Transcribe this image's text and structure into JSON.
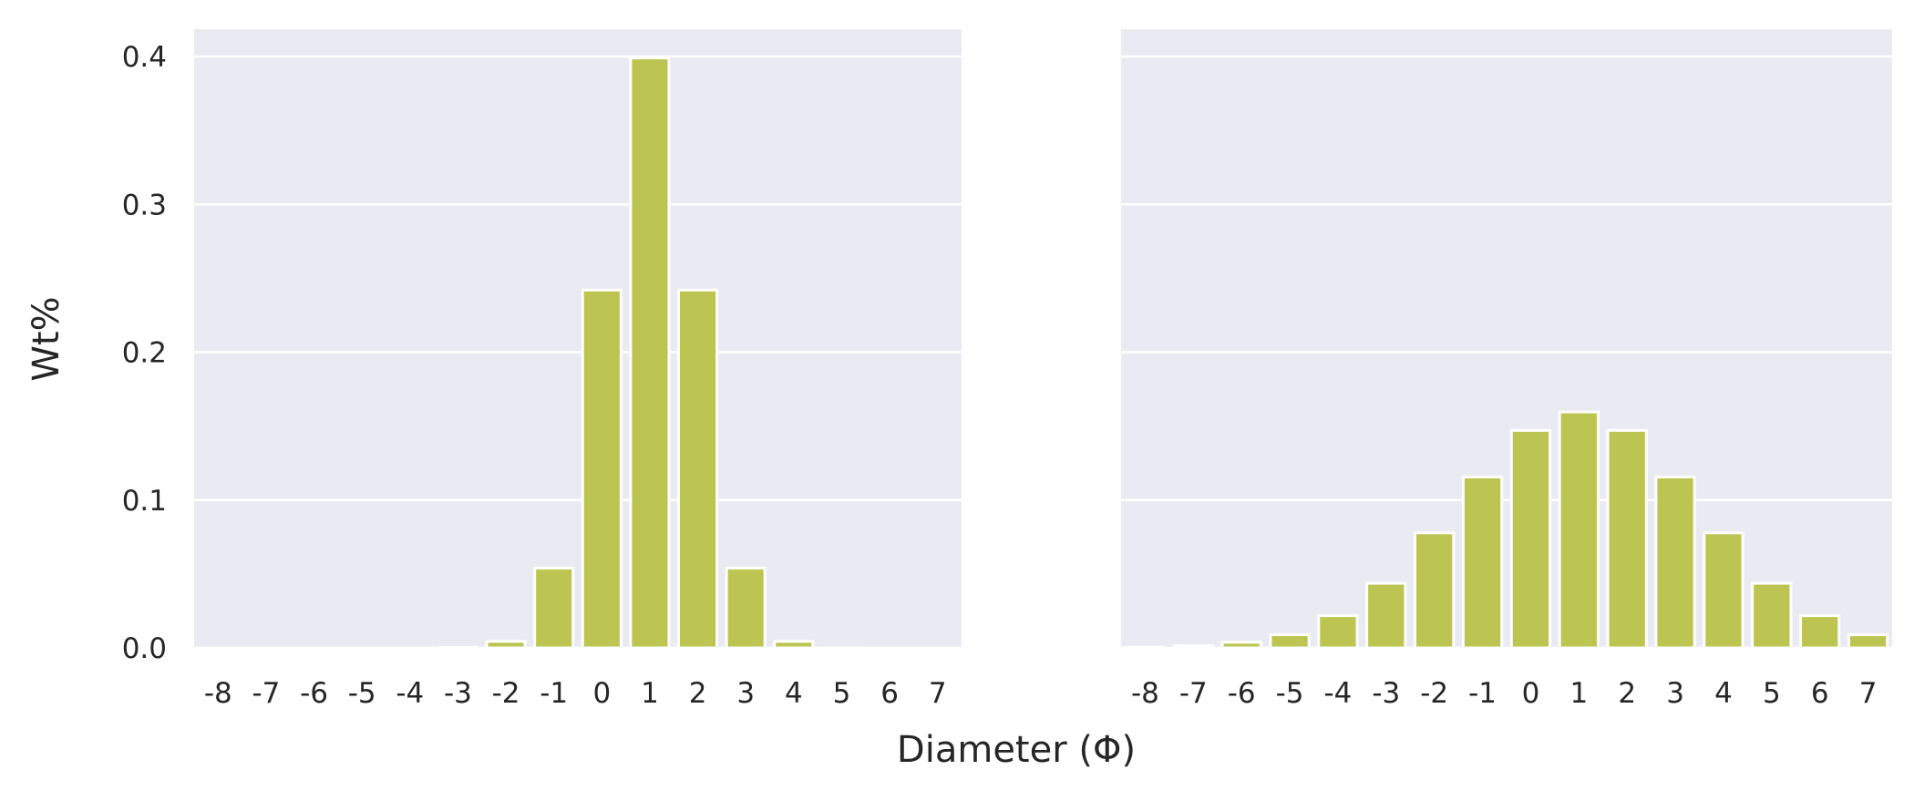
{
  "chart_data": [
    {
      "type": "bar",
      "ylabel": "Wt%",
      "xlabel": "Diameter (Φ)",
      "categories": [
        "-8",
        "-7",
        "-6",
        "-5",
        "-4",
        "-3",
        "-2",
        "-1",
        "0",
        "1",
        "2",
        "3",
        "4",
        "5",
        "6",
        "7"
      ],
      "values": [
        0.0,
        0.0,
        0.0,
        0.0,
        0.0,
        0.0003,
        0.0044,
        0.054,
        0.242,
        0.399,
        0.242,
        0.054,
        0.0044,
        0.0001,
        0.0,
        0.0
      ],
      "ylim": [
        0,
        0.42
      ],
      "yticks": [
        "0.0",
        "0.1",
        "0.2",
        "0.3",
        "0.4"
      ],
      "grid": true,
      "colors": {
        "bar": "#bcc552",
        "background": "#eaeaf2",
        "edge": "#ffffff"
      }
    },
    {
      "type": "bar",
      "ylabel": "",
      "xlabel": "Diameter (Φ)",
      "categories": [
        "-8",
        "-7",
        "-6",
        "-5",
        "-4",
        "-3",
        "-2",
        "-1",
        "0",
        "1",
        "2",
        "3",
        "4",
        "5",
        "6",
        "7"
      ],
      "values": [
        0.0004,
        0.0015,
        0.0038,
        0.0089,
        0.0218,
        0.0437,
        0.0778,
        0.1156,
        0.1471,
        0.1596,
        0.1471,
        0.1156,
        0.0778,
        0.0437,
        0.0218,
        0.0089
      ],
      "ylim": [
        0,
        0.42
      ],
      "yticks": [
        "0.0",
        "0.1",
        "0.2",
        "0.3",
        "0.4"
      ],
      "grid": true,
      "colors": {
        "bar": "#bcc552",
        "background": "#eaeaf2",
        "edge": "#ffffff"
      }
    }
  ]
}
